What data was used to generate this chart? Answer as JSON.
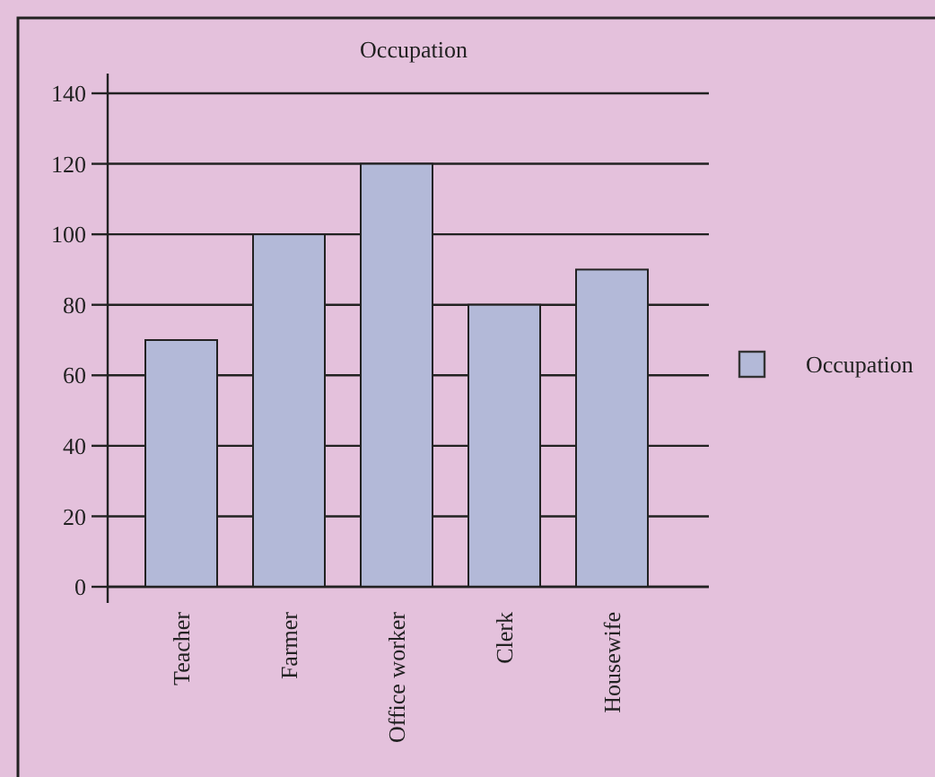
{
  "chart_data": {
    "type": "bar",
    "title": "Occupation",
    "categories": [
      "Teacher",
      "Farmer",
      "Office worker",
      "Clerk",
      "Housewife"
    ],
    "series": [
      {
        "name": "Occupation",
        "color": "#b3b9d8",
        "values": [
          70,
          100,
          120,
          80,
          90
        ]
      }
    ],
    "ylim": [
      0,
      140
    ],
    "yticks": [
      0,
      20,
      40,
      60,
      80,
      100,
      120,
      140
    ],
    "grid": "y",
    "legend": "right"
  }
}
